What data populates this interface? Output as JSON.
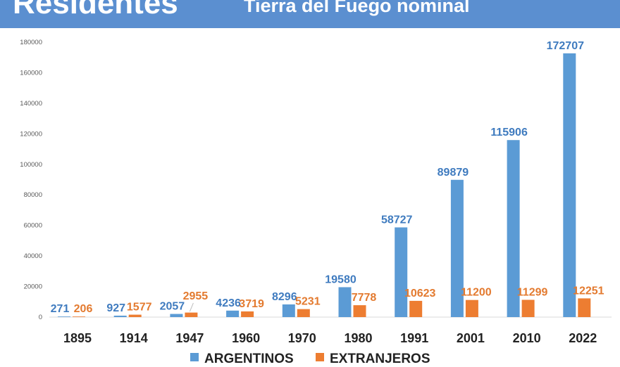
{
  "header": {
    "left_text": "Residentes",
    "title": "Tierra del Fuego nominal"
  },
  "colors": {
    "header_bg": "#5b8fd0",
    "argentinos": "#5b9bd5",
    "extranjeros": "#ed7d31"
  },
  "chart_data": {
    "type": "bar",
    "title": "Tierra del Fuego nominal",
    "categories": [
      "1895",
      "1914",
      "1947",
      "1960",
      "1970",
      "1980",
      "1991",
      "2001",
      "2010",
      "2022"
    ],
    "series": [
      {
        "name": "ARGENTINOS",
        "values": [
          271,
          927,
          2057,
          4236,
          8296,
          19580,
          58727,
          89879,
          115906,
          172707
        ]
      },
      {
        "name": "EXTRANJEROS",
        "values": [
          206,
          1577,
          2955,
          3719,
          5231,
          7778,
          10623,
          11200,
          11299,
          12251
        ]
      }
    ],
    "y_ticks": [
      "0",
      "20000",
      "40000",
      "60000",
      "80000",
      "100000",
      "120000",
      "140000",
      "160000",
      "180000"
    ],
    "ylim": [
      0,
      180000
    ],
    "xlabel": "",
    "ylabel": "",
    "grid": false,
    "legend_position": "bottom"
  }
}
